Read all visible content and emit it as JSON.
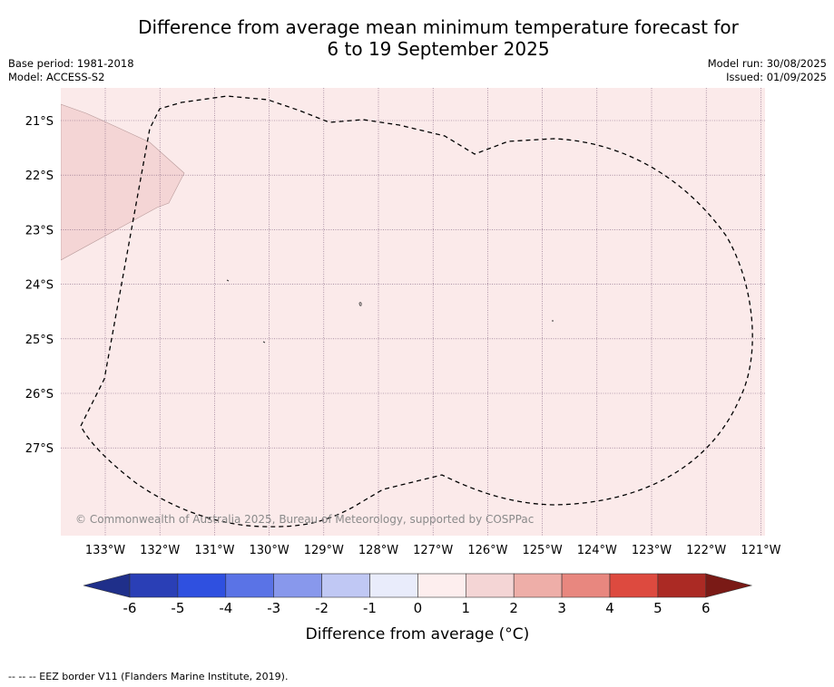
{
  "header": {
    "title_line1": "Difference from average mean minimum temperature forecast for",
    "title_line2": "6 to 19 September 2025",
    "base_period": "Base period: 1981-2018",
    "model": "Model: ACCESS-S2",
    "model_run": "Model run: 30/08/2025",
    "issued": "Issued: 01/09/2025"
  },
  "map": {
    "lat_labels": [
      "21°S",
      "22°S",
      "23°S",
      "24°S",
      "25°S",
      "26°S",
      "27°S"
    ],
    "lon_labels": [
      "133°W",
      "132°W",
      "131°W",
      "130°W",
      "129°W",
      "128°W",
      "127°W",
      "126°W",
      "125°W",
      "124°W",
      "123°W",
      "122°W",
      "121°W"
    ],
    "copyright": "© Commonwealth of Australia 2025, Bureau of Meteorology, supported by COSPPac",
    "colors": {
      "background_anomaly": "#fbeaea",
      "northwest_anomaly": "#f4d5d5",
      "eez_border": "#000000"
    }
  },
  "colorbar": {
    "tick_labels": [
      "-6",
      "-5",
      "-4",
      "-3",
      "-2",
      "-1",
      "0",
      "1",
      "2",
      "3",
      "4",
      "5",
      "6"
    ],
    "colors": [
      "#1f2f8a",
      "#2a3fb6",
      "#2f50e0",
      "#5a73e6",
      "#8898ec",
      "#c0c8f4",
      "#e9ecfb",
      "#fdeeee",
      "#f4d5d5",
      "#eeaea8",
      "#e8877f",
      "#dd4a3f",
      "#ab2a24",
      "#7a1a16"
    ],
    "title": "Difference from average (°C)"
  },
  "footer": {
    "legend": "-- -- -- EEZ border V11 (Flanders Marine Institute, 2019)."
  }
}
